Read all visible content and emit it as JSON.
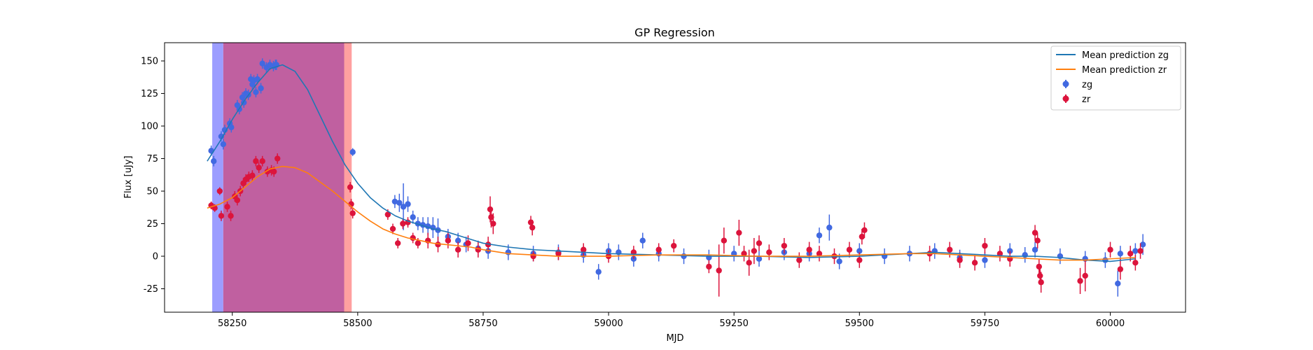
{
  "chart_data": {
    "type": "scatter",
    "title": "GP Regression",
    "xlabel": "MJD",
    "ylabel": "Flux [uJy]",
    "xlim": [
      58115,
      60150
    ],
    "ylim": [
      -43,
      164
    ],
    "xticks": [
      58250,
      58500,
      58750,
      59000,
      59250,
      59500,
      59750,
      60000
    ],
    "yticks": [
      -25,
      0,
      25,
      50,
      75,
      100,
      125,
      150
    ],
    "grid": false,
    "legend_position": "top-right",
    "legend": [
      {
        "label": "Mean prediction zg",
        "kind": "line",
        "color": "#1f77b4"
      },
      {
        "label": "Mean prediction zr",
        "kind": "line",
        "color": "#ff7f0e"
      },
      {
        "label": "zg",
        "kind": "errorbar",
        "color": "#4169e1"
      },
      {
        "label": "zr",
        "kind": "errorbar",
        "color": "#dc143c"
      }
    ],
    "shaded_regions": [
      {
        "band": "zg",
        "x": [
          58210,
          58232
        ],
        "color": "#4a4dff",
        "alpha": 0.55
      },
      {
        "band": "zr",
        "x": [
          58232,
          58473
        ],
        "color": "#c060a0",
        "alpha": 1.0
      },
      {
        "band": "zr",
        "x": [
          58473,
          58488
        ],
        "color": "#ff8080",
        "alpha": 0.75
      }
    ],
    "lines": [
      {
        "name": "Mean prediction zg",
        "color": "#1f77b4",
        "x": [
          58200,
          58225,
          58250,
          58275,
          58300,
          58325,
          58350,
          58375,
          58400,
          58425,
          58450,
          58475,
          58500,
          58525,
          58550,
          58575,
          58600,
          58625,
          58650,
          58675,
          58700,
          58725,
          58750,
          58800,
          58850,
          58900,
          58950,
          59000,
          59100,
          59200,
          59300,
          59400,
          59500,
          59600,
          59650,
          59700,
          59750,
          59800,
          59850,
          59900,
          59950,
          60000,
          60050
        ],
        "y": [
          73,
          88,
          105,
          120,
          133,
          144,
          147,
          142,
          128,
          108,
          88,
          70,
          56,
          45,
          37,
          31,
          27,
          24,
          21,
          19,
          16,
          13,
          10,
          7,
          5,
          4,
          3,
          2,
          1,
          0,
          0,
          -1,
          0,
          2,
          3,
          2,
          1,
          0,
          0,
          -1,
          -3,
          -4,
          -2
        ]
      },
      {
        "name": "Mean prediction zr",
        "color": "#ff7f0e",
        "x": [
          58200,
          58225,
          58250,
          58275,
          58300,
          58325,
          58350,
          58375,
          58400,
          58425,
          58450,
          58475,
          58500,
          58525,
          58550,
          58575,
          58600,
          58625,
          58650,
          58675,
          58700,
          58725,
          58750,
          58800,
          58850,
          58900,
          58950,
          59000,
          59100,
          59200,
          59300,
          59400,
          59500,
          59600,
          59650,
          59700,
          59750,
          59800,
          59850,
          59900,
          59950,
          60000,
          60050
        ],
        "y": [
          37,
          40,
          45,
          53,
          61,
          67,
          69,
          68,
          64,
          57,
          50,
          42,
          34,
          27,
          21,
          17,
          14,
          12,
          10,
          9,
          8,
          7,
          5,
          2,
          1,
          0,
          0,
          0,
          1,
          1,
          0,
          0,
          1,
          2,
          2,
          1,
          0,
          -1,
          -2,
          -3,
          -3,
          -2,
          -1
        ]
      }
    ],
    "series": [
      {
        "name": "zg",
        "color": "#4169e1",
        "x": [
          58208,
          58213,
          58228,
          58232,
          58235,
          58245,
          58248,
          58260,
          58264,
          58270,
          58273,
          58277,
          58282,
          58287,
          58290,
          58293,
          58297,
          58300,
          58307,
          58310,
          58318,
          58325,
          58332,
          58336,
          58338,
          58490,
          58574,
          58583,
          58591,
          58600,
          58610,
          58620,
          58630,
          58640,
          58650,
          58660,
          58680,
          58700,
          58716,
          58740,
          58760,
          58800,
          58850,
          58900,
          58950,
          58980,
          59000,
          59020,
          59050,
          59068,
          59100,
          59150,
          59200,
          59250,
          59300,
          59350,
          59400,
          59420,
          59440,
          59460,
          59500,
          59550,
          59600,
          59650,
          59700,
          59750,
          59800,
          59830,
          59850,
          59900,
          59950,
          59990,
          60015,
          60020,
          60050,
          60065
        ],
        "y": [
          81,
          73,
          92,
          86,
          97,
          102,
          99,
          116,
          113,
          122,
          118,
          125,
          124,
          136,
          132,
          135,
          126,
          136,
          129,
          148,
          145,
          147,
          146,
          147,
          147,
          80,
          42,
          41,
          38,
          40,
          30,
          25,
          24,
          23,
          22,
          20,
          15,
          12,
          9,
          6,
          4,
          3,
          2,
          3,
          1,
          -12,
          4,
          3,
          -2,
          12,
          2,
          0,
          -1,
          2,
          -2,
          3,
          2,
          16,
          22,
          -4,
          4,
          0,
          2,
          4,
          -1,
          -3,
          4,
          1,
          5,
          0,
          -2,
          -3,
          -21,
          2,
          4,
          9
        ],
        "err": [
          4,
          4,
          4,
          4,
          4,
          4,
          4,
          4,
          4,
          4,
          4,
          4,
          4,
          4,
          4,
          4,
          4,
          4,
          4,
          4,
          4,
          4,
          4,
          4,
          4,
          3,
          5,
          7,
          18,
          6,
          5,
          5,
          6,
          7,
          8,
          9,
          6,
          6,
          6,
          6,
          6,
          6,
          6,
          6,
          6,
          6,
          6,
          6,
          6,
          6,
          6,
          6,
          6,
          6,
          6,
          6,
          6,
          6,
          10,
          6,
          6,
          6,
          6,
          6,
          6,
          6,
          6,
          6,
          6,
          6,
          6,
          6,
          10,
          6,
          6,
          8
        ]
      },
      {
        "name": "zr",
        "color": "#dc143c",
        "x": [
          58208,
          58215,
          58225,
          58228,
          58240,
          58247,
          58255,
          58260,
          58266,
          58272,
          58277,
          58283,
          58290,
          58297,
          58303,
          58310,
          58320,
          58328,
          58333,
          58340,
          58485,
          58487,
          58490,
          58560,
          58570,
          58580,
          58590,
          58600,
          58610,
          58620,
          58640,
          58660,
          58680,
          58700,
          58720,
          58740,
          58760,
          58764,
          58766,
          58770,
          58845,
          58848,
          58850,
          58900,
          58950,
          59000,
          59050,
          59100,
          59130,
          59200,
          59220,
          59230,
          59260,
          59270,
          59280,
          59290,
          59300,
          59320,
          59350,
          59380,
          59400,
          59420,
          59450,
          59480,
          59500,
          59505,
          59510,
          59640,
          59680,
          59700,
          59730,
          59750,
          59780,
          59800,
          59850,
          59855,
          59858,
          59860,
          59862,
          59940,
          59950,
          60000,
          60020,
          60040,
          60050,
          60060
        ],
        "y": [
          39,
          37,
          50,
          31,
          38,
          31,
          46,
          43,
          50,
          56,
          59,
          61,
          62,
          73,
          68,
          73,
          65,
          66,
          65,
          75,
          53,
          40,
          33,
          32,
          21,
          10,
          25,
          26,
          14,
          10,
          12,
          9,
          12,
          5,
          10,
          5,
          9,
          36,
          30,
          25,
          26,
          22,
          0,
          2,
          5,
          0,
          3,
          5,
          8,
          -8,
          -11,
          12,
          18,
          2,
          -5,
          4,
          10,
          3,
          8,
          -3,
          5,
          2,
          0,
          5,
          -3,
          15,
          20,
          2,
          5,
          -3,
          -5,
          8,
          2,
          -2,
          18,
          12,
          -8,
          -15,
          -20,
          -19,
          -15,
          5,
          -10,
          2,
          -5,
          4
        ],
        "err": [
          3,
          3,
          3,
          4,
          4,
          4,
          4,
          4,
          4,
          4,
          4,
          4,
          4,
          4,
          4,
          4,
          4,
          4,
          4,
          4,
          4,
          4,
          4,
          4,
          4,
          4,
          4,
          4,
          4,
          4,
          6,
          6,
          6,
          6,
          6,
          6,
          6,
          10,
          8,
          8,
          5,
          6,
          4,
          5,
          5,
          5,
          5,
          5,
          5,
          5,
          20,
          10,
          10,
          6,
          10,
          10,
          6,
          6,
          6,
          6,
          6,
          6,
          6,
          6,
          6,
          6,
          6,
          6,
          6,
          6,
          6,
          6,
          6,
          6,
          6,
          6,
          6,
          6,
          8,
          10,
          12,
          6,
          8,
          6,
          6,
          6
        ]
      }
    ]
  }
}
